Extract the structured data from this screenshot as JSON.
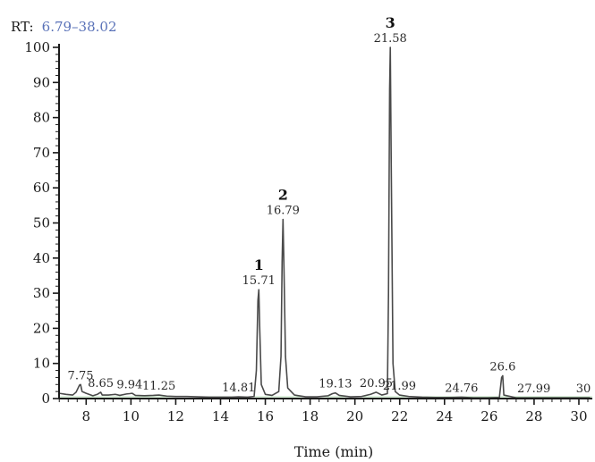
{
  "chart_data": {
    "type": "line",
    "range_label": "RT:",
    "range_text": "6.79–38.02",
    "xlabel": "Time (min)",
    "ylabel": "",
    "xlim": [
      6.79,
      30.6
    ],
    "ylim": [
      0,
      100
    ],
    "x_ticks": [
      8,
      10,
      12,
      14,
      16,
      18,
      20,
      22,
      24,
      26,
      28,
      30
    ],
    "y_ticks": [
      0,
      10,
      20,
      30,
      40,
      50,
      60,
      70,
      80,
      90,
      100
    ],
    "grid": false,
    "series": [
      {
        "values": [
          [
            6.8,
            1.5
          ],
          [
            7.1,
            1.2
          ],
          [
            7.4,
            1.0
          ],
          [
            7.55,
            1.8
          ],
          [
            7.7,
            3.8
          ],
          [
            7.75,
            4.0
          ],
          [
            7.82,
            2.0
          ],
          [
            8.0,
            1.5
          ],
          [
            8.3,
            0.8
          ],
          [
            8.5,
            1.2
          ],
          [
            8.6,
            1.6
          ],
          [
            8.65,
            1.8
          ],
          [
            8.72,
            1.0
          ],
          [
            9.0,
            1.0
          ],
          [
            9.3,
            1.2
          ],
          [
            9.5,
            0.9
          ],
          [
            9.8,
            1.3
          ],
          [
            9.94,
            1.4
          ],
          [
            10.05,
            1.5
          ],
          [
            10.2,
            0.9
          ],
          [
            10.6,
            0.8
          ],
          [
            11.0,
            0.9
          ],
          [
            11.25,
            1.0
          ],
          [
            11.6,
            0.7
          ],
          [
            12.0,
            0.6
          ],
          [
            12.5,
            0.6
          ],
          [
            13.0,
            0.5
          ],
          [
            13.5,
            0.4
          ],
          [
            14.0,
            0.4
          ],
          [
            14.5,
            0.4
          ],
          [
            14.81,
            0.5
          ],
          [
            15.2,
            0.4
          ],
          [
            15.5,
            0.6
          ],
          [
            15.6,
            8.0
          ],
          [
            15.67,
            28.0
          ],
          [
            15.71,
            31.0
          ],
          [
            15.75,
            20.0
          ],
          [
            15.82,
            4.0
          ],
          [
            16.0,
            1.2
          ],
          [
            16.3,
            0.9
          ],
          [
            16.6,
            2.0
          ],
          [
            16.7,
            12.0
          ],
          [
            16.75,
            39.0
          ],
          [
            16.79,
            51.0
          ],
          [
            16.83,
            38.0
          ],
          [
            16.9,
            12.0
          ],
          [
            17.0,
            3.0
          ],
          [
            17.3,
            1.0
          ],
          [
            17.8,
            0.5
          ],
          [
            18.3,
            0.5
          ],
          [
            18.8,
            0.8
          ],
          [
            19.0,
            1.4
          ],
          [
            19.13,
            1.6
          ],
          [
            19.3,
            0.9
          ],
          [
            19.8,
            0.5
          ],
          [
            20.3,
            0.6
          ],
          [
            20.7,
            1.2
          ],
          [
            20.95,
            1.8
          ],
          [
            21.2,
            1.0
          ],
          [
            21.45,
            1.4
          ],
          [
            21.5,
            30.0
          ],
          [
            21.55,
            88.0
          ],
          [
            21.58,
            100.0
          ],
          [
            21.62,
            68.0
          ],
          [
            21.7,
            10.0
          ],
          [
            21.8,
            2.0
          ],
          [
            21.99,
            1.0
          ],
          [
            22.4,
            0.6
          ],
          [
            23.0,
            0.4
          ],
          [
            23.6,
            0.3
          ],
          [
            24.2,
            0.3
          ],
          [
            24.76,
            0.4
          ],
          [
            25.3,
            0.2
          ],
          [
            25.9,
            0.2
          ],
          [
            26.45,
            0.3
          ],
          [
            26.55,
            6.0
          ],
          [
            26.6,
            6.5
          ],
          [
            26.65,
            1.0
          ],
          [
            27.2,
            0.2
          ],
          [
            27.99,
            0.2
          ],
          [
            28.6,
            0.2
          ],
          [
            29.3,
            0.2
          ],
          [
            30.0,
            0.2
          ],
          [
            30.5,
            0.2
          ]
        ]
      }
    ],
    "peak_labels": [
      {
        "x": 7.75,
        "y": 4.0,
        "text": "7.75"
      },
      {
        "x": 8.65,
        "y": 1.8,
        "text": "8.65"
      },
      {
        "x": 9.94,
        "y": 1.4,
        "text": "9.94"
      },
      {
        "x": 11.25,
        "y": 1.0,
        "text": "11.25"
      },
      {
        "x": 14.81,
        "y": 0.5,
        "text": "14.81"
      },
      {
        "x": 15.71,
        "y": 31.0,
        "text": "15.71",
        "number": "1"
      },
      {
        "x": 16.79,
        "y": 51.0,
        "text": "16.79",
        "number": "2"
      },
      {
        "x": 19.13,
        "y": 1.6,
        "text": "19.13"
      },
      {
        "x": 20.95,
        "y": 1.8,
        "text": "20.95"
      },
      {
        "x": 21.58,
        "y": 100.0,
        "text": "21.58",
        "number": "3"
      },
      {
        "x": 21.99,
        "y": 1.0,
        "text": "21.99"
      },
      {
        "x": 24.76,
        "y": 0.4,
        "text": "24.76"
      },
      {
        "x": 26.6,
        "y": 6.5,
        "text": "26.6"
      },
      {
        "x": 27.99,
        "y": 0.2,
        "text": "27.99"
      },
      {
        "x": 30.2,
        "y": 0.2,
        "text": "30"
      }
    ],
    "colors": {
      "trace": "#4a4a4a",
      "axis": "#1a1a1a",
      "baseline_noise": "#8fd08f"
    }
  }
}
